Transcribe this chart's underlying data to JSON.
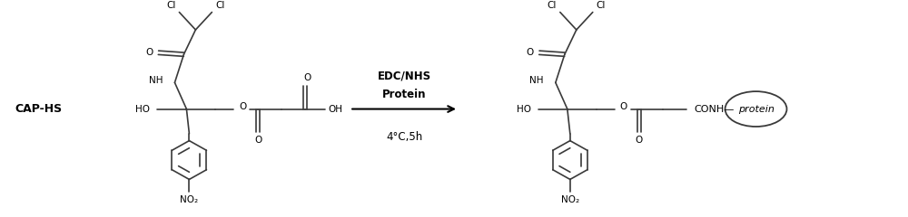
{
  "bg_color": "#ffffff",
  "line_color": "#3a3a3a",
  "text_color": "#000000",
  "label_caphs": "CAP-HS",
  "arrow_label1": "EDC/NHS",
  "arrow_label2": "Protein",
  "arrow_label3": "4°C,5h",
  "protein_label": "protein",
  "figsize": [
    10.0,
    2.4
  ],
  "dpi": 100
}
